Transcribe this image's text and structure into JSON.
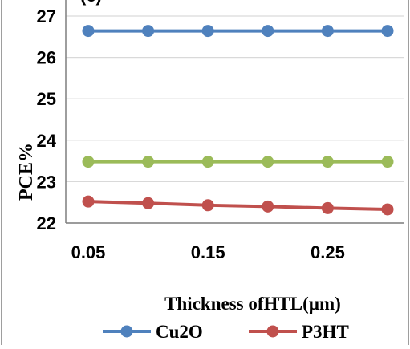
{
  "chart_data": {
    "type": "line",
    "title": "",
    "partial_title": "(c)",
    "xlabel": "Thickness ofHTL(µm)",
    "ylabel": "PCE%",
    "x": [
      0.05,
      0.1,
      0.15,
      0.2,
      0.25,
      0.3
    ],
    "xlim": [
      0.05,
      0.3
    ],
    "ylim": [
      22,
      27
    ],
    "x_ticks": [
      "0.05",
      "0.15",
      "0.25"
    ],
    "x_tick_values": [
      0.05,
      0.15,
      0.25
    ],
    "y_ticks": [
      "22",
      "23",
      "24",
      "25",
      "26",
      "27"
    ],
    "y_tick_values": [
      22,
      23,
      24,
      25,
      26,
      27
    ],
    "grid": "horizontal",
    "legend_position": "bottom",
    "series": [
      {
        "name": "Cu2O",
        "color": "#4f81bd",
        "values": [
          26.64,
          26.64,
          26.64,
          26.64,
          26.64,
          26.64
        ]
      },
      {
        "name": "P3HT",
        "color": "#c0504d",
        "values": [
          22.52,
          22.48,
          22.43,
          22.4,
          22.36,
          22.33
        ]
      },
      {
        "name": "",
        "color": "#9bbb59",
        "values": [
          23.48,
          23.48,
          23.48,
          23.48,
          23.48,
          23.48
        ]
      }
    ]
  }
}
